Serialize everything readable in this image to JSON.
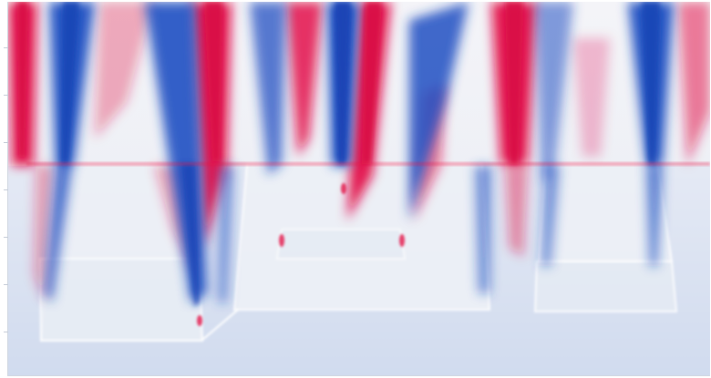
{
  "image": {
    "subject": "",
    "colors": {
      "background": "#c3d1ea",
      "positive": "#e3124a",
      "negative": "#1f4fc2",
      "neutral": "#f3f3f7"
    }
  }
}
